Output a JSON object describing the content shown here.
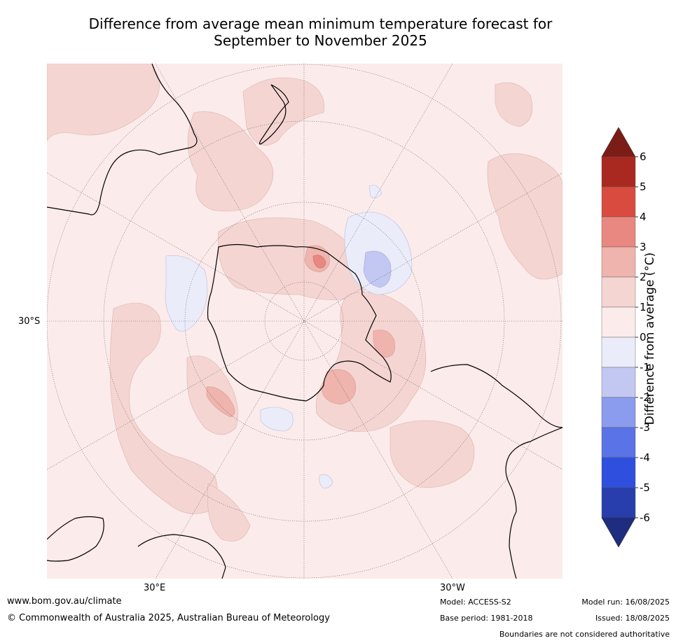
{
  "title": {
    "line1": "Difference from average mean minimum temperature forecast for",
    "line2": "September to November 2025"
  },
  "map": {
    "projection": "south polar stereographic",
    "lon_labels": [
      "30°E",
      "30°W"
    ],
    "lat_labels": [
      "30°S"
    ]
  },
  "colorbar": {
    "label": "Difference from average (°C)",
    "ticks": [
      "6",
      "5",
      "4",
      "3",
      "2",
      "1",
      "0",
      "-1",
      "-2",
      "-3",
      "-4",
      "-5",
      "-6"
    ],
    "colors": {
      "extend_max": "#7b1c16",
      "5_6": "#a9281f",
      "4_5": "#d94b3f",
      "3_4": "#e88880",
      "2_3": "#efb4ad",
      "1_2": "#f4d5d2",
      "0_1": "#fbebea",
      "-1_0": "#eaecf9",
      "-2_-1": "#c2c8f2",
      "-3_-2": "#8b9bee",
      "-4_-3": "#5a73e6",
      "-5_-4": "#2f50de",
      "-6_-5": "#283ead",
      "extend_min": "#1e2d80"
    }
  },
  "footer": {
    "website": "www.bom.gov.au/climate",
    "copyright": "© Commonwealth of Australia 2025, Australian Bureau of Meteorology",
    "model": "Model: ACCESS-S2",
    "base_period": "Base period: 1981-2018",
    "model_run": "Model run: 16/08/2025",
    "issued": "Issued: 18/08/2025",
    "disclaimer": "Boundaries are not considered authoritative"
  }
}
